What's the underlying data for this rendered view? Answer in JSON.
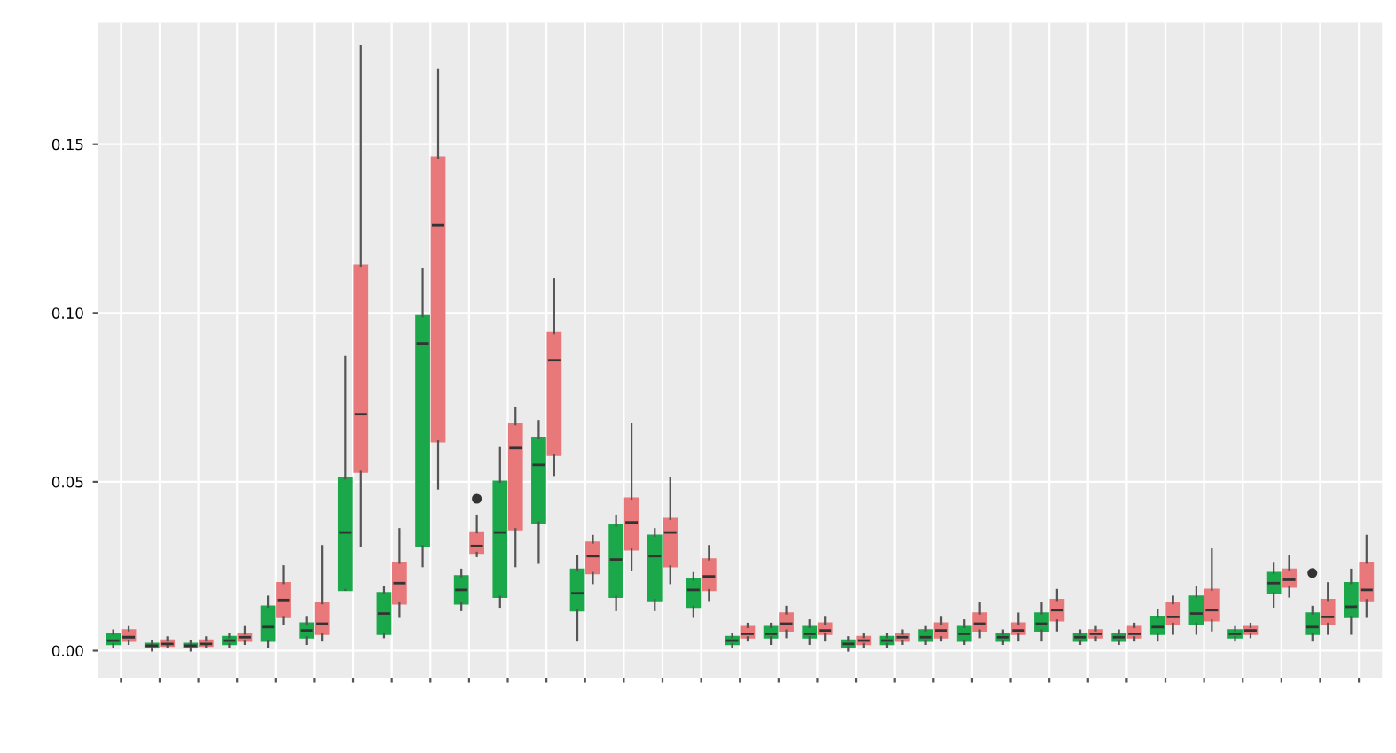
{
  "chart_data": {
    "type": "box",
    "categories": [
      null,
      null,
      null,
      null,
      null,
      null,
      null,
      null,
      null,
      null,
      null,
      null,
      null,
      null,
      null,
      null,
      null,
      null,
      null,
      null,
      null,
      null,
      null,
      null,
      null,
      null,
      null,
      null,
      null,
      null,
      null,
      null,
      null
    ],
    "ylim": [
      -0.008,
      0.186
    ],
    "yticks": [
      {
        "value": 0,
        "label": "0.00"
      },
      0.05,
      {
        "value": 0.1,
        "label": "0.10"
      },
      0.15
    ],
    "grid": true,
    "legend": false,
    "series": [
      {
        "color": "#1aa84a",
        "boxes": [
          {
            "low": 0.001,
            "q1": 0.002,
            "median": 0.003,
            "q3": 0.005,
            "high": 0.006
          },
          {
            "low": 0.0,
            "q1": 0.001,
            "median": 0.0015,
            "q3": 0.002,
            "high": 0.003
          },
          {
            "low": 0.0,
            "q1": 0.001,
            "median": 0.0015,
            "q3": 0.002,
            "high": 0.003
          },
          {
            "low": 0.001,
            "q1": 0.002,
            "median": 0.003,
            "q3": 0.004,
            "high": 0.005
          },
          {
            "low": 0.001,
            "q1": 0.003,
            "median": 0.007,
            "q3": 0.013,
            "high": 0.016
          },
          {
            "low": 0.002,
            "q1": 0.004,
            "median": 0.006,
            "q3": 0.008,
            "high": 0.01
          },
          {
            "low": 0.018,
            "q1": 0.018,
            "median": 0.035,
            "q3": 0.051,
            "high": 0.087
          },
          {
            "low": 0.004,
            "q1": 0.005,
            "median": 0.011,
            "q3": 0.017,
            "high": 0.019
          },
          {
            "low": 0.025,
            "q1": 0.031,
            "median": 0.091,
            "q3": 0.099,
            "high": 0.113
          },
          {
            "low": 0.012,
            "q1": 0.014,
            "median": 0.018,
            "q3": 0.022,
            "high": 0.024
          },
          {
            "low": 0.013,
            "q1": 0.016,
            "median": 0.035,
            "q3": 0.05,
            "high": 0.06
          },
          {
            "low": 0.026,
            "q1": 0.038,
            "median": 0.055,
            "q3": 0.063,
            "high": 0.068
          },
          {
            "low": 0.003,
            "q1": 0.012,
            "median": 0.017,
            "q3": 0.024,
            "high": 0.028
          },
          {
            "low": 0.012,
            "q1": 0.016,
            "median": 0.027,
            "q3": 0.037,
            "high": 0.04
          },
          {
            "low": 0.012,
            "q1": 0.015,
            "median": 0.028,
            "q3": 0.034,
            "high": 0.036
          },
          {
            "low": 0.01,
            "q1": 0.013,
            "median": 0.018,
            "q3": 0.021,
            "high": 0.023
          },
          {
            "low": 0.001,
            "q1": 0.002,
            "median": 0.003,
            "q3": 0.004,
            "high": 0.005
          },
          {
            "low": 0.002,
            "q1": 0.004,
            "median": 0.005,
            "q3": 0.007,
            "high": 0.008
          },
          {
            "low": 0.002,
            "q1": 0.004,
            "median": 0.005,
            "q3": 0.007,
            "high": 0.009
          },
          {
            "low": 0.0,
            "q1": 0.001,
            "median": 0.002,
            "q3": 0.003,
            "high": 0.004
          },
          {
            "low": 0.001,
            "q1": 0.002,
            "median": 0.003,
            "q3": 0.004,
            "high": 0.005
          },
          {
            "low": 0.002,
            "q1": 0.003,
            "median": 0.004,
            "q3": 0.006,
            "high": 0.007
          },
          {
            "low": 0.002,
            "q1": 0.003,
            "median": 0.005,
            "q3": 0.007,
            "high": 0.009
          },
          {
            "low": 0.002,
            "q1": 0.003,
            "median": 0.004,
            "q3": 0.005,
            "high": 0.006
          },
          {
            "low": 0.003,
            "q1": 0.006,
            "median": 0.008,
            "q3": 0.011,
            "high": 0.014
          },
          {
            "low": 0.002,
            "q1": 0.003,
            "median": 0.004,
            "q3": 0.005,
            "high": 0.006
          },
          {
            "low": 0.002,
            "q1": 0.003,
            "median": 0.004,
            "q3": 0.005,
            "high": 0.006
          },
          {
            "low": 0.003,
            "q1": 0.005,
            "median": 0.007,
            "q3": 0.01,
            "high": 0.012
          },
          {
            "low": 0.005,
            "q1": 0.008,
            "median": 0.011,
            "q3": 0.016,
            "high": 0.019
          },
          {
            "low": 0.003,
            "q1": 0.004,
            "median": 0.005,
            "q3": 0.006,
            "high": 0.007
          },
          {
            "low": 0.013,
            "q1": 0.017,
            "median": 0.02,
            "q3": 0.023,
            "high": 0.026
          },
          {
            "low": 0.003,
            "q1": 0.005,
            "median": 0.007,
            "q3": 0.011,
            "high": 0.013,
            "outliers": [
              0.023
            ]
          },
          {
            "low": 0.005,
            "q1": 0.01,
            "median": 0.013,
            "q3": 0.02,
            "high": 0.024
          }
        ]
      },
      {
        "color": "#e8787a",
        "boxes": [
          {
            "low": 0.002,
            "q1": 0.003,
            "median": 0.004,
            "q3": 0.006,
            "high": 0.007
          },
          {
            "low": 0.001,
            "q1": 0.0015,
            "median": 0.002,
            "q3": 0.003,
            "high": 0.004
          },
          {
            "low": 0.001,
            "q1": 0.0015,
            "median": 0.002,
            "q3": 0.003,
            "high": 0.004
          },
          {
            "low": 0.002,
            "q1": 0.003,
            "median": 0.004,
            "q3": 0.005,
            "high": 0.007
          },
          {
            "low": 0.008,
            "q1": 0.01,
            "median": 0.015,
            "q3": 0.02,
            "high": 0.025
          },
          {
            "low": 0.003,
            "q1": 0.005,
            "median": 0.008,
            "q3": 0.014,
            "high": 0.031
          },
          {
            "low": 0.031,
            "q1": 0.053,
            "median": 0.07,
            "q3": 0.114,
            "high": 0.179
          },
          {
            "low": 0.01,
            "q1": 0.014,
            "median": 0.02,
            "q3": 0.026,
            "high": 0.036
          },
          {
            "low": 0.048,
            "q1": 0.062,
            "median": 0.126,
            "q3": 0.146,
            "high": 0.172
          },
          {
            "low": 0.028,
            "q1": 0.029,
            "median": 0.031,
            "q3": 0.035,
            "high": 0.04,
            "outliers": [
              0.045
            ]
          },
          {
            "low": 0.025,
            "q1": 0.036,
            "median": 0.06,
            "q3": 0.067,
            "high": 0.072
          },
          {
            "low": 0.052,
            "q1": 0.058,
            "median": 0.086,
            "q3": 0.094,
            "high": 0.11
          },
          {
            "low": 0.02,
            "q1": 0.023,
            "median": 0.028,
            "q3": 0.032,
            "high": 0.034
          },
          {
            "low": 0.024,
            "q1": 0.03,
            "median": 0.038,
            "q3": 0.045,
            "high": 0.067
          },
          {
            "low": 0.02,
            "q1": 0.025,
            "median": 0.035,
            "q3": 0.039,
            "high": 0.051
          },
          {
            "low": 0.015,
            "q1": 0.018,
            "median": 0.022,
            "q3": 0.027,
            "high": 0.031
          },
          {
            "low": 0.003,
            "q1": 0.004,
            "median": 0.005,
            "q3": 0.007,
            "high": 0.008
          },
          {
            "low": 0.004,
            "q1": 0.006,
            "median": 0.008,
            "q3": 0.011,
            "high": 0.013
          },
          {
            "low": 0.003,
            "q1": 0.005,
            "median": 0.006,
            "q3": 0.008,
            "high": 0.01
          },
          {
            "low": 0.001,
            "q1": 0.002,
            "median": 0.003,
            "q3": 0.004,
            "high": 0.005
          },
          {
            "low": 0.002,
            "q1": 0.003,
            "median": 0.004,
            "q3": 0.005,
            "high": 0.006
          },
          {
            "low": 0.003,
            "q1": 0.004,
            "median": 0.006,
            "q3": 0.008,
            "high": 0.01
          },
          {
            "low": 0.004,
            "q1": 0.006,
            "median": 0.008,
            "q3": 0.011,
            "high": 0.014
          },
          {
            "low": 0.003,
            "q1": 0.005,
            "median": 0.006,
            "q3": 0.008,
            "high": 0.011
          },
          {
            "low": 0.006,
            "q1": 0.009,
            "median": 0.012,
            "q3": 0.015,
            "high": 0.018
          },
          {
            "low": 0.003,
            "q1": 0.004,
            "median": 0.005,
            "q3": 0.006,
            "high": 0.007
          },
          {
            "low": 0.003,
            "q1": 0.004,
            "median": 0.005,
            "q3": 0.007,
            "high": 0.008
          },
          {
            "low": 0.005,
            "q1": 0.008,
            "median": 0.01,
            "q3": 0.014,
            "high": 0.016
          },
          {
            "low": 0.006,
            "q1": 0.009,
            "median": 0.012,
            "q3": 0.018,
            "high": 0.03
          },
          {
            "low": 0.004,
            "q1": 0.005,
            "median": 0.006,
            "q3": 0.007,
            "high": 0.008
          },
          {
            "low": 0.016,
            "q1": 0.019,
            "median": 0.021,
            "q3": 0.024,
            "high": 0.028
          },
          {
            "low": 0.005,
            "q1": 0.008,
            "median": 0.01,
            "q3": 0.015,
            "high": 0.02
          },
          {
            "low": 0.01,
            "q1": 0.015,
            "median": 0.018,
            "q3": 0.026,
            "high": 0.034
          }
        ]
      }
    ]
  }
}
